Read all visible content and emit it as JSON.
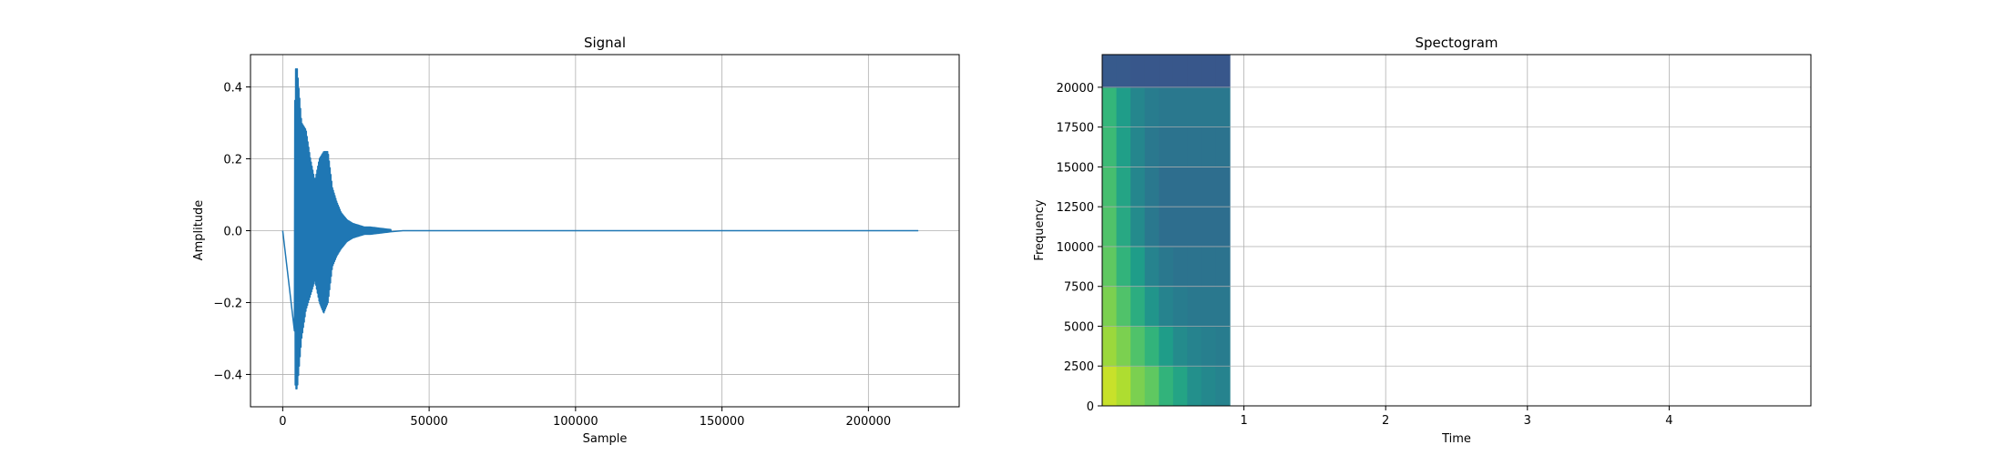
{
  "chart_data": [
    {
      "type": "line",
      "title": "Signal",
      "xlabel": "Sample",
      "ylabel": "Amplitude",
      "xlim": [
        -11000,
        231000
      ],
      "ylim": [
        -0.49,
        0.49
      ],
      "xticks": [
        0,
        50000,
        100000,
        150000,
        200000
      ],
      "xtick_labels": [
        "0",
        "50000",
        "100000",
        "150000",
        "200000"
      ],
      "yticks": [
        -0.4,
        -0.2,
        0.0,
        0.2,
        0.4
      ],
      "ytick_labels": [
        "−0.4",
        "−0.2",
        "0.0",
        "0.2",
        "0.4"
      ],
      "grid": true,
      "series": [
        {
          "color": "#1f77b4",
          "envelope": {
            "x": [
              0,
              3500,
              4300,
              5000,
              6500,
              8000,
              9500,
              11000,
              12500,
              14000,
              15500,
              17000,
              18500,
              20000,
              22000,
              24000,
              26000,
              28000,
              30000,
              32000,
              34000,
              36000,
              38000,
              40000,
              220500
            ],
            "upper": [
              0.0,
              0.01,
              0.45,
              0.45,
              0.3,
              0.28,
              0.2,
              0.14,
              0.2,
              0.22,
              0.22,
              0.12,
              0.08,
              0.05,
              0.03,
              0.02,
              0.015,
              0.01,
              0.01,
              0.008,
              0.006,
              0.004,
              0.002,
              0.0,
              0.0
            ],
            "lower": [
              0.0,
              -0.01,
              -0.44,
              -0.44,
              -0.3,
              -0.22,
              -0.18,
              -0.14,
              -0.2,
              -0.23,
              -0.2,
              -0.1,
              -0.07,
              -0.05,
              -0.03,
              -0.02,
              -0.015,
              -0.01,
              -0.01,
              -0.008,
              -0.006,
              -0.004,
              -0.002,
              0.0,
              0.0
            ]
          }
        }
      ]
    },
    {
      "type": "heatmap",
      "title": "Spectogram",
      "xlabel": "Time",
      "ylabel": "Frequency",
      "xlim": [
        0,
        5.0
      ],
      "ylim": [
        0,
        22050
      ],
      "xticks": [
        1,
        2,
        3,
        4
      ],
      "xtick_labels": [
        "1",
        "2",
        "3",
        "4"
      ],
      "yticks": [
        0,
        2500,
        5000,
        7500,
        10000,
        12500,
        15000,
        17500,
        20000
      ],
      "ytick_labels": [
        "0",
        "2500",
        "5000",
        "7500",
        "10000",
        "12500",
        "15000",
        "17500",
        "20000"
      ],
      "grid": true,
      "colormap": "viridis",
      "image_extent": {
        "time": [
          0,
          0.9
        ],
        "frequency": [
          0,
          22050
        ]
      },
      "time_edges": [
        0.0,
        0.1,
        0.2,
        0.3,
        0.4,
        0.5,
        0.6,
        0.7,
        0.8,
        0.9
      ],
      "freq_edges": [
        0,
        2500,
        5000,
        7500,
        10000,
        12500,
        15000,
        17500,
        20000,
        22050
      ],
      "intensity": [
        [
          0.92,
          0.88,
          0.8,
          0.75,
          0.65,
          0.58,
          0.5,
          0.47,
          0.45
        ],
        [
          0.85,
          0.8,
          0.72,
          0.65,
          0.55,
          0.48,
          0.45,
          0.43,
          0.42
        ],
        [
          0.8,
          0.72,
          0.62,
          0.52,
          0.45,
          0.42,
          0.4,
          0.4,
          0.4
        ],
        [
          0.75,
          0.65,
          0.55,
          0.45,
          0.4,
          0.38,
          0.38,
          0.38,
          0.38
        ],
        [
          0.72,
          0.6,
          0.48,
          0.4,
          0.36,
          0.36,
          0.36,
          0.36,
          0.36
        ],
        [
          0.7,
          0.58,
          0.46,
          0.4,
          0.36,
          0.36,
          0.36,
          0.36,
          0.36
        ],
        [
          0.68,
          0.56,
          0.46,
          0.4,
          0.38,
          0.38,
          0.38,
          0.38,
          0.38
        ],
        [
          0.66,
          0.55,
          0.46,
          0.42,
          0.4,
          0.4,
          0.4,
          0.4,
          0.4
        ],
        [
          0.28,
          0.28,
          0.27,
          0.27,
          0.27,
          0.27,
          0.27,
          0.27,
          0.27
        ]
      ]
    }
  ]
}
